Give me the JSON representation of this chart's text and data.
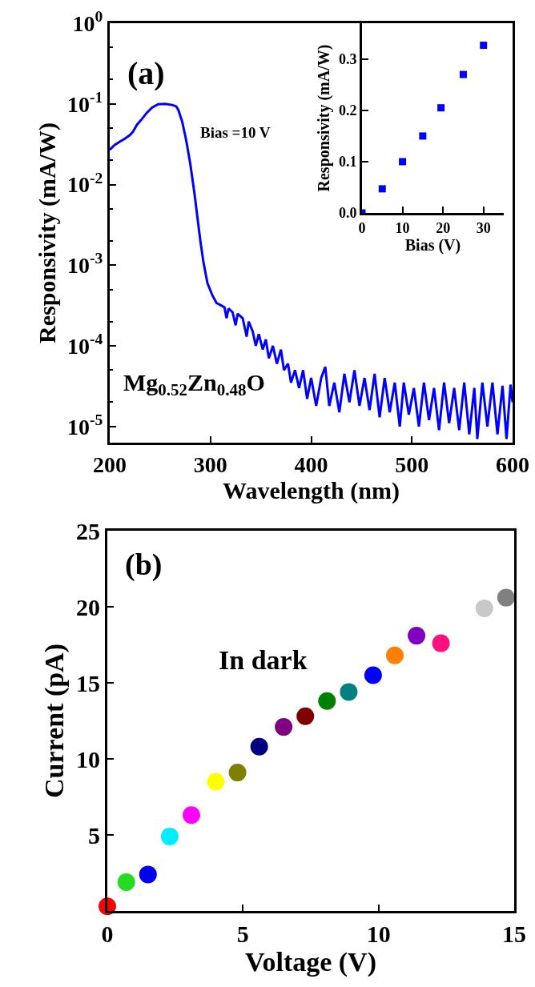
{
  "chart_data": [
    {
      "type": "line",
      "xlabel": "Wavelength (nm)",
      "ylabel": "Responsivity (mA/W)",
      "log": "y",
      "annotations": [
        "(a)",
        "Bias =10 V",
        "Mg$_{0.52}$Zn$_{0.48}$O"
      ],
      "x": [
        200,
        205,
        210,
        215,
        220,
        223,
        227,
        232,
        237,
        242,
        248,
        255,
        262,
        266,
        268,
        272,
        276,
        280,
        284,
        287,
        290,
        293,
        297,
        302,
        306,
        310,
        314,
        316,
        318,
        322,
        325,
        327,
        332,
        336,
        338,
        342,
        345,
        348,
        352,
        355,
        358,
        362,
        366,
        370,
        373,
        377,
        380,
        384,
        388,
        392,
        396,
        400,
        405,
        410,
        414,
        418,
        423,
        428,
        433,
        438,
        443,
        448,
        453,
        458,
        463,
        468,
        473,
        478,
        483,
        488,
        492,
        497,
        502,
        507,
        512,
        517,
        522,
        527,
        532,
        537,
        542,
        547,
        552,
        557,
        562,
        565,
        570,
        575,
        580,
        585,
        590,
        594,
        598,
        600
      ],
      "series": [
        {
          "color": "#0000ff",
          "values": [
            0.027,
            0.031,
            0.034,
            0.037,
            0.041,
            0.045,
            0.055,
            0.065,
            0.078,
            0.09,
            0.099,
            0.1,
            0.097,
            0.093,
            0.085,
            0.06,
            0.035,
            0.018,
            0.008,
            0.004,
            0.002,
            0.0011,
            0.0006,
            0.00042,
            0.00034,
            0.00032,
            0.0003,
            0.00022,
            0.00029,
            0.00026,
            0.00018,
            0.00025,
            0.00022,
            0.00013,
            0.0002,
            0.00015,
            0.0001,
            0.00014,
            9e-05,
            0.00012,
            7e-05,
            0.0001,
            6e-05,
            9e-05,
            5e-05,
            6e-05,
            3.5e-05,
            5e-05,
            3e-05,
            5e-05,
            2.2e-05,
            4e-05,
            1.8e-05,
            4e-05,
            5.5e-05,
            1.8e-05,
            3.5e-05,
            1.5e-05,
            4.5e-05,
            2e-05,
            5e-05,
            1.8e-05,
            4e-05,
            1.6e-05,
            4.5e-05,
            1.3e-05,
            4e-05,
            1.5e-05,
            3.5e-05,
            1e-05,
            3.5e-05,
            1.4e-05,
            3e-05,
            1e-05,
            3.5e-05,
            1.2e-05,
            3e-05,
            9e-06,
            3.5e-05,
            1.1e-05,
            3e-05,
            9e-06,
            3.5e-05,
            8e-06,
            3e-05,
            7e-06,
            3.5e-05,
            1e-05,
            3.5e-05,
            8e-06,
            3.2e-05,
            7e-06,
            3.3e-05,
            2e-05
          ]
        }
      ],
      "xlim": [
        200,
        600
      ],
      "xticks": [
        200,
        300,
        400,
        500,
        600
      ],
      "ylim": [
        6.3e-06,
        1
      ],
      "yticks": [
        {
          "value": 1e-05,
          "label": "10$^{-5}$"
        },
        {
          "value": 0.0001,
          "label": "10$^{-4}$"
        },
        {
          "value": 0.001,
          "label": "10$^{-3}$"
        },
        {
          "value": 0.01,
          "label": "10$^{-2}$"
        },
        {
          "value": 0.1,
          "label": "10$^{-1}$"
        },
        {
          "value": 1,
          "label": "10$^{0}$"
        }
      ],
      "marker": "none",
      "line_style": "solid"
    },
    {
      "type": "scatter",
      "xlabel": "Bias (V)",
      "ylabel": "Responsivity (mA/W)",
      "x": [
        0,
        5,
        10,
        15,
        19.5,
        25,
        30
      ],
      "series": [
        {
          "color": "#0000ff",
          "values": [
            0,
            0.047,
            0.1,
            0.15,
            0.205,
            0.27,
            0.327
          ]
        }
      ],
      "xlim": [
        0,
        35
      ],
      "xticks": [
        0,
        10,
        20,
        30
      ],
      "ylim": [
        0,
        0.37
      ],
      "yticks": [
        {
          "value": 0,
          "label": "0.0"
        },
        {
          "value": 0.1,
          "label": "0.1"
        },
        {
          "value": 0.2,
          "label": "0.2"
        },
        {
          "value": 0.3,
          "label": "0.3"
        }
      ],
      "marker": "square"
    },
    {
      "type": "scatter",
      "xlabel": "Voltage (V)",
      "ylabel": "Current (pA)",
      "annotations": [
        "(b)",
        "In dark"
      ],
      "x": [
        0,
        0.7,
        1.5,
        2.3,
        3.1,
        4.0,
        4.8,
        5.6,
        6.5,
        7.3,
        8.1,
        8.9,
        9.8,
        10.6,
        11.4,
        12.3,
        13.9,
        14.7
      ],
      "series": [
        {
          "colors": [
            "#ff0000",
            "#22dd22",
            "#0000ee",
            "#00eeff",
            "#ff00ff",
            "#ffff00",
            "#808000",
            "#000080",
            "#800080",
            "#800000",
            "#008000",
            "#008080",
            "#0000ff",
            "#ff8000",
            "#8000c0",
            "#ff1080",
            "#c8c8c8",
            "#808080"
          ],
          "values": [
            0.3,
            1.9,
            2.4,
            4.9,
            6.3,
            8.5,
            9.1,
            10.8,
            12.1,
            12.8,
            13.8,
            14.4,
            15.5,
            16.8,
            18.1,
            17.6,
            19.9,
            20.6
          ]
        }
      ],
      "xlim": [
        0,
        15
      ],
      "xticks": [
        0,
        5,
        10,
        15
      ],
      "ylim": [
        0,
        25
      ],
      "yticks": [
        {
          "value": 0,
          "label": null
        },
        5,
        10,
        15,
        20,
        25
      ],
      "marker": "circle"
    }
  ]
}
